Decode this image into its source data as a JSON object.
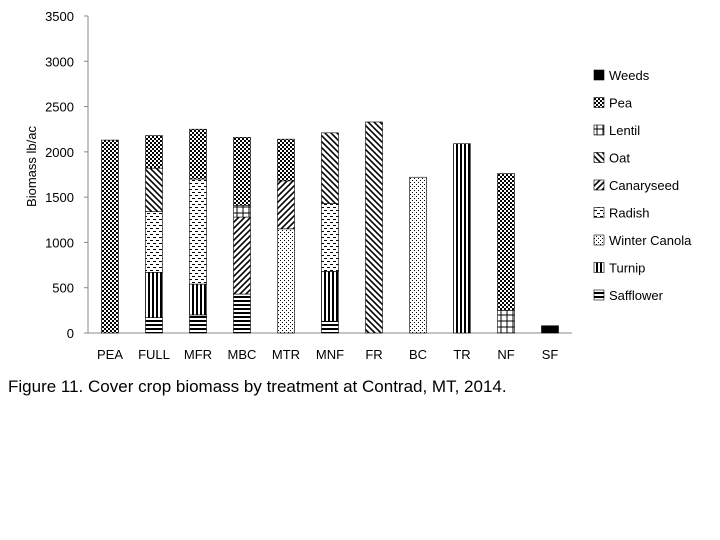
{
  "chart_data": {
    "type": "bar",
    "stacked": true,
    "title": "",
    "xlabel": "",
    "ylabel": "Biomass lb/ac",
    "ylim": [
      0,
      3500
    ],
    "yticks": [
      0,
      500,
      1000,
      1500,
      2000,
      2500,
      3000,
      3500
    ],
    "grid": false,
    "legend_position": "right",
    "categories": [
      "PEA",
      "FULL",
      "MFR",
      "MBC",
      "MTR",
      "MNF",
      "FR",
      "BC",
      "TR",
      "NF",
      "SF"
    ],
    "series": [
      {
        "name": "Safflower",
        "pattern": "hlines",
        "values": [
          0,
          170,
          200,
          430,
          0,
          130,
          0,
          0,
          0,
          0,
          0
        ]
      },
      {
        "name": "Turnip",
        "pattern": "vlines",
        "values": [
          0,
          500,
          340,
          0,
          0,
          550,
          0,
          0,
          2090,
          0,
          0
        ]
      },
      {
        "name": "Winter Canola",
        "pattern": "dots",
        "values": [
          0,
          0,
          0,
          0,
          1150,
          0,
          0,
          1720,
          0,
          0,
          0
        ]
      },
      {
        "name": "Radish",
        "pattern": "dashes",
        "values": [
          0,
          670,
          1160,
          0,
          0,
          750,
          0,
          0,
          0,
          0,
          0
        ]
      },
      {
        "name": "Canaryseed",
        "pattern": "fdiag",
        "values": [
          0,
          0,
          0,
          850,
          530,
          0,
          0,
          0,
          0,
          0,
          0
        ]
      },
      {
        "name": "Oat",
        "pattern": "bdiag",
        "values": [
          0,
          480,
          0,
          0,
          0,
          780,
          2330,
          0,
          0,
          0,
          0
        ]
      },
      {
        "name": "Lentil",
        "pattern": "cross",
        "values": [
          0,
          0,
          0,
          130,
          0,
          0,
          0,
          0,
          0,
          250,
          0
        ]
      },
      {
        "name": "Pea",
        "pattern": "checker",
        "values": [
          2130,
          360,
          550,
          750,
          460,
          0,
          0,
          0,
          0,
          1510,
          0
        ]
      },
      {
        "name": "Weeds",
        "pattern": "solid",
        "values": [
          0,
          0,
          0,
          0,
          0,
          0,
          0,
          0,
          0,
          0,
          80
        ]
      }
    ]
  },
  "caption": "Figure 11. Cover crop biomass by treatment at Contrad, MT, 2014."
}
